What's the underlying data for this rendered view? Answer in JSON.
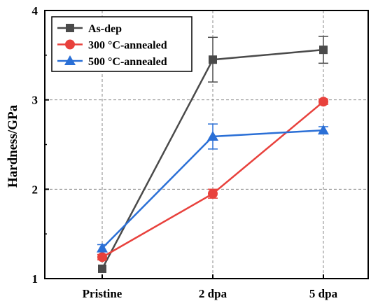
{
  "chart_data": {
    "type": "line",
    "categories": [
      "Pristine",
      "2 dpa",
      "5 dpa"
    ],
    "ylabel": "Hardness/GPa",
    "xlabel": "",
    "ylim": [
      1,
      4
    ],
    "yticks": [
      "1",
      "2",
      "3",
      "4"
    ],
    "grid": "dashed, at y = 2 and y = 3 and at each category",
    "legend_position": "top-left",
    "series": [
      {
        "name": "As-dep",
        "color": "#4a4a4a",
        "marker": "square",
        "values": [
          1.11,
          3.45,
          3.56
        ],
        "errors": [
          0.0,
          0.25,
          0.15
        ]
      },
      {
        "name": "300 °C-annealed",
        "color": "#e8413c",
        "marker": "circle",
        "values": [
          1.24,
          1.95,
          2.98
        ],
        "errors": [
          0.03,
          0.05,
          0.03
        ]
      },
      {
        "name": "500 °C-annealed",
        "color": "#2a6fd6",
        "marker": "triangle",
        "values": [
          1.34,
          2.59,
          2.66
        ],
        "errors": [
          0.04,
          0.14,
          0.04
        ]
      }
    ]
  }
}
